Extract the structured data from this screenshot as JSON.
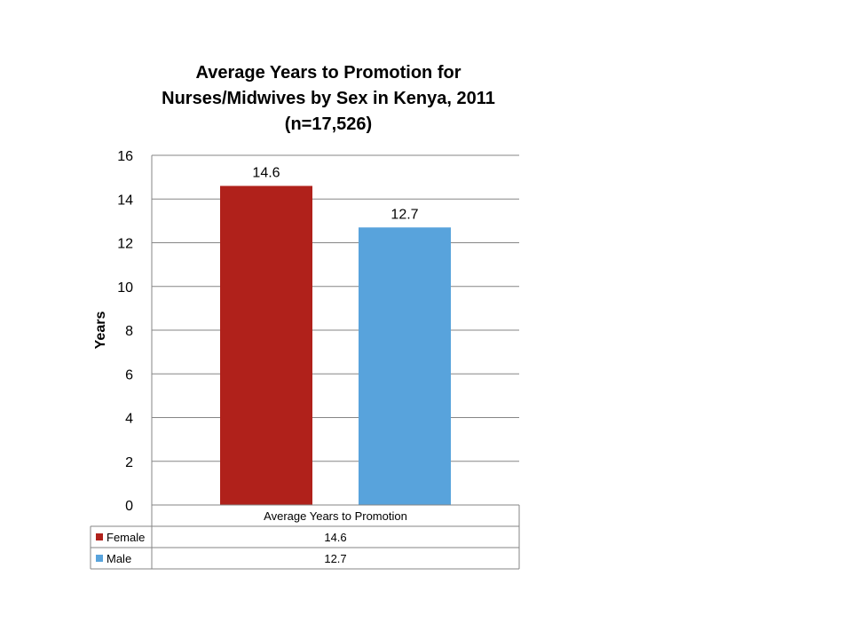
{
  "chart_data": {
    "type": "bar",
    "title_lines": [
      "Average Years to Promotion for",
      "Nurses/Midwives by Sex in Kenya, 2011",
      "(n=17,526)"
    ],
    "ylabel": "Years",
    "xlabel": "",
    "categories": [
      "Average Years to Promotion"
    ],
    "series": [
      {
        "name": "Female",
        "color": "#b0211b",
        "values": [
          14.6
        ]
      },
      {
        "name": "Male",
        "color": "#58a3dc",
        "values": [
          12.7
        ]
      }
    ],
    "data_labels": [
      "14.6",
      "12.7"
    ],
    "ylim": [
      0,
      16
    ],
    "yticks": [
      0,
      2,
      4,
      6,
      8,
      10,
      12,
      14,
      16
    ],
    "grid": true,
    "legend": "data-table-below",
    "data_table": {
      "header": "Average Years to Promotion",
      "rows": [
        {
          "label": "Female",
          "value": "14.6"
        },
        {
          "label": "Male",
          "value": "12.7"
        }
      ]
    }
  }
}
